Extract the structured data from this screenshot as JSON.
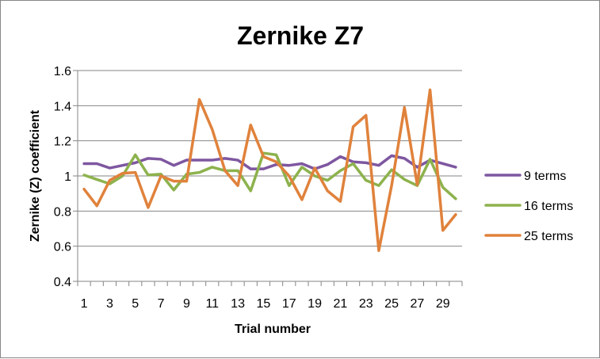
{
  "chart_data": {
    "type": "line",
    "title": "Zernike Z7",
    "xlabel": "Trial number",
    "ylabel": "Zernike (Z) coefficient",
    "x": [
      1,
      2,
      3,
      4,
      5,
      6,
      7,
      8,
      9,
      10,
      11,
      12,
      13,
      14,
      15,
      16,
      17,
      18,
      19,
      20,
      21,
      22,
      23,
      24,
      25,
      26,
      27,
      28,
      29,
      30
    ],
    "x_tick_labels": [
      "1",
      "3",
      "5",
      "7",
      "9",
      "11",
      "13",
      "15",
      "17",
      "19",
      "21",
      "23",
      "25",
      "27",
      "29"
    ],
    "x_tick_values": [
      1,
      3,
      5,
      7,
      9,
      11,
      13,
      15,
      17,
      19,
      21,
      23,
      25,
      27,
      29
    ],
    "ylim": [
      0.4,
      1.6
    ],
    "y_ticks": [
      0.4,
      0.6,
      0.8,
      1,
      1.2,
      1.4,
      1.6
    ],
    "y_tick_labels": [
      "0.4",
      "0.6",
      "0.8",
      "1",
      "1.2",
      "1.4",
      "1.6"
    ],
    "grid": "horizontal",
    "legend_position": "right",
    "series": [
      {
        "name": "9 terms",
        "color": "#7e57a0",
        "values": [
          1.07,
          1.07,
          1.045,
          1.06,
          1.075,
          1.1,
          1.095,
          1.06,
          1.09,
          1.09,
          1.09,
          1.1,
          1.09,
          1.04,
          1.04,
          1.065,
          1.06,
          1.07,
          1.04,
          1.065,
          1.11,
          1.08,
          1.075,
          1.06,
          1.115,
          1.1,
          1.05,
          1.09,
          1.07,
          1.05
        ]
      },
      {
        "name": "16 terms",
        "color": "#8db24d",
        "values": [
          1.005,
          0.98,
          0.955,
          1.0,
          1.12,
          1.005,
          1.01,
          0.92,
          1.01,
          1.02,
          1.05,
          1.03,
          1.03,
          0.915,
          1.13,
          1.12,
          0.945,
          1.05,
          1.0,
          0.975,
          1.03,
          1.07,
          0.975,
          0.945,
          1.035,
          0.98,
          0.945,
          1.095,
          0.935,
          0.87
        ]
      },
      {
        "name": "25 terms",
        "color": "#e0823c",
        "values": [
          0.925,
          0.83,
          0.975,
          1.015,
          1.02,
          0.82,
          1.0,
          0.97,
          0.97,
          1.435,
          1.265,
          1.03,
          0.945,
          1.29,
          1.11,
          1.08,
          1.0,
          0.865,
          1.045,
          0.915,
          0.855,
          1.28,
          1.345,
          0.575,
          0.945,
          1.39,
          0.95,
          1.49,
          0.69,
          0.78
        ]
      }
    ]
  }
}
